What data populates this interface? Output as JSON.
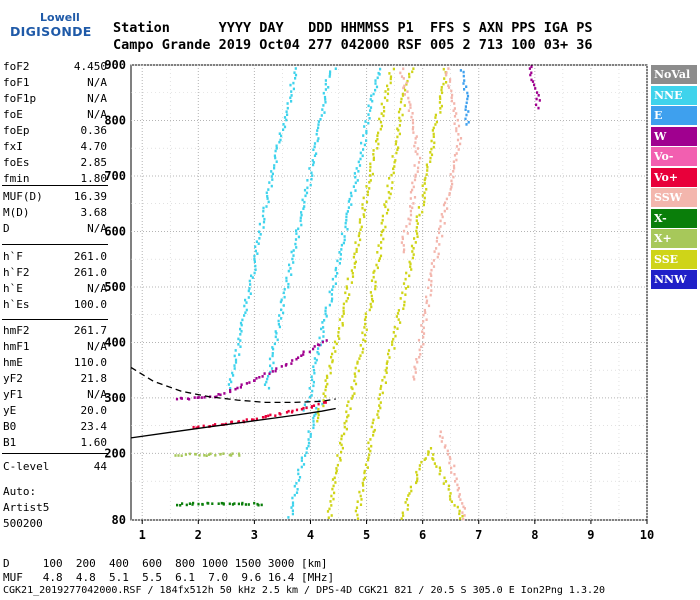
{
  "logo": {
    "line1": "Lowell",
    "line2": "DIGISONDE"
  },
  "header": {
    "row1": "Station      YYYY DAY   DDD HHMMSS P1  FFS S AXN PPS IGA PS",
    "row2": "Campo Grande 2019 Oct04 277 042000 RSF 005 2 713 100 03+ 36"
  },
  "params": [
    {
      "name": "foF2",
      "value": "4.450"
    },
    {
      "name": "foF1",
      "value": "N/A"
    },
    {
      "name": "foF1p",
      "value": "N/A"
    },
    {
      "name": "foE",
      "value": "N/A"
    },
    {
      "name": "foEp",
      "value": "0.36"
    },
    {
      "name": "fxI",
      "value": "4.70"
    },
    {
      "name": "foEs",
      "value": "2.85"
    },
    {
      "name": "fmin",
      "value": "1.80"
    },
    {
      "name": "MUF(D)",
      "value": "16.39"
    },
    {
      "name": "M(D)",
      "value": "3.68"
    },
    {
      "name": "D",
      "value": "N/A"
    },
    {
      "name": "h`F",
      "value": "261.0"
    },
    {
      "name": "h`F2",
      "value": "261.0"
    },
    {
      "name": "h`E",
      "value": "N/A"
    },
    {
      "name": "h`Es",
      "value": "100.0"
    },
    {
      "name": "hmF2",
      "value": "261.7"
    },
    {
      "name": "hmF1",
      "value": "N/A"
    },
    {
      "name": "hmE",
      "value": "110.0"
    },
    {
      "name": "yF2",
      "value": "21.8"
    },
    {
      "name": "yF1",
      "value": "N/A"
    },
    {
      "name": "yE",
      "value": "20.0"
    },
    {
      "name": "B0",
      "value": "23.4"
    },
    {
      "name": "B1",
      "value": "1.60"
    },
    {
      "name": "C-level",
      "value": "44"
    },
    {
      "name": "Auto:",
      "value": ""
    },
    {
      "name": "Artist5",
      "value": ""
    },
    {
      "name": "500200",
      "value": ""
    }
  ],
  "legend": [
    {
      "label": "NoVal",
      "bg": "#8c8c8c",
      "fg": "#ffffff"
    },
    {
      "label": "NNE",
      "bg": "#3fd3ec",
      "fg": "#ffffff"
    },
    {
      "label": "E",
      "bg": "#3ea0ee",
      "fg": "#ffffff"
    },
    {
      "label": "W",
      "bg": "#a0008f",
      "fg": "#ffffff"
    },
    {
      "label": "Vo-",
      "bg": "#f25fb0",
      "fg": "#ffffff"
    },
    {
      "label": "Vo+",
      "bg": "#e8003a",
      "fg": "#ffffff"
    },
    {
      "label": "SSW",
      "bg": "#f3b6ad",
      "fg": "#ffffff"
    },
    {
      "label": "X-",
      "bg": "#0a7e0a",
      "fg": "#ffffff"
    },
    {
      "label": "X+",
      "bg": "#a7c85a",
      "fg": "#ffffff"
    },
    {
      "label": "SSE",
      "bg": "#cfd418",
      "fg": "#ffffff"
    },
    {
      "label": "NNW",
      "bg": "#2020c8",
      "fg": "#ffffff"
    }
  ],
  "footer": {
    "row1": "D     100  200  400  600  800 1000 1500 3000 [km]",
    "row2": "MUF   4.8  4.8  5.1  5.5  6.1  7.0  9.6 16.4 [MHz]",
    "row3": "CGK21_2019277042000.RSF / 184fx512h 50 kHz 2.5 km / DPS-4D CGK21 821 / 20.5 S 305.0 E Ion2Png 1.3.20"
  },
  "chart_data": {
    "type": "scatter",
    "title": "",
    "xlabel": "",
    "ylabel": "",
    "xlim": [
      0.8,
      10
    ],
    "ylim": [
      80,
      900
    ],
    "xticks": [
      1,
      2,
      3,
      4,
      5,
      6,
      7,
      8,
      9,
      10
    ],
    "yticks": [
      80,
      200,
      300,
      400,
      500,
      600,
      700,
      800,
      900
    ],
    "grid": true,
    "legend_position": "right",
    "traces": [
      {
        "series": "NNE",
        "color": "#3fd3ec",
        "points": [
          [
            2.55,
            320
          ],
          [
            2.8,
            450
          ],
          [
            3.05,
            580
          ],
          [
            3.3,
            700
          ],
          [
            3.55,
            820
          ],
          [
            3.75,
            900
          ]
        ]
      },
      {
        "series": "NNE",
        "color": "#3fd3ec",
        "points": [
          [
            3.2,
            320
          ],
          [
            3.5,
            480
          ],
          [
            3.8,
            620
          ],
          [
            4.1,
            760
          ],
          [
            4.3,
            880
          ],
          [
            4.45,
            900
          ]
        ]
      },
      {
        "series": "NNE",
        "color": "#3fd3ec",
        "points": [
          [
            3.9,
            280
          ],
          [
            4.2,
            420
          ],
          [
            4.5,
            560
          ],
          [
            4.8,
            700
          ],
          [
            5.05,
            830
          ],
          [
            5.25,
            900
          ]
        ]
      },
      {
        "series": "NNE",
        "color": "#3fd3ec",
        "points": [
          [
            3.6,
            80
          ],
          [
            3.75,
            150
          ],
          [
            3.9,
            210
          ],
          [
            4.05,
            270
          ],
          [
            4.2,
            300
          ]
        ]
      },
      {
        "series": "SSE",
        "color": "#cfd418",
        "points": [
          [
            4.3,
            80
          ],
          [
            4.5,
            200
          ],
          [
            4.7,
            300
          ],
          [
            4.95,
            420
          ],
          [
            5.2,
            560
          ],
          [
            5.45,
            720
          ],
          [
            5.7,
            880
          ],
          [
            5.8,
            900
          ]
        ]
      },
      {
        "series": "SSE",
        "color": "#cfd418",
        "points": [
          [
            4.8,
            80
          ],
          [
            5.0,
            200
          ],
          [
            5.2,
            290
          ],
          [
            5.5,
            420
          ],
          [
            5.8,
            560
          ],
          [
            6.05,
            700
          ],
          [
            6.3,
            840
          ],
          [
            6.4,
            900
          ]
        ]
      },
      {
        "series": "SSE",
        "color": "#cfd418",
        "points": [
          [
            4.1,
            260
          ],
          [
            4.35,
            360
          ],
          [
            4.6,
            470
          ],
          [
            4.85,
            600
          ],
          [
            5.1,
            730
          ],
          [
            5.35,
            860
          ],
          [
            5.45,
            900
          ]
        ]
      },
      {
        "series": "SSE",
        "color": "#cfd418",
        "points": [
          [
            5.6,
            80
          ],
          [
            5.9,
            170
          ],
          [
            6.1,
            210
          ],
          [
            6.3,
            170
          ],
          [
            6.5,
            120
          ],
          [
            6.7,
            80
          ]
        ]
      },
      {
        "series": "SSW",
        "color": "#f3b6ad",
        "points": [
          [
            6.4,
            900
          ],
          [
            6.55,
            820
          ],
          [
            6.65,
            760
          ],
          [
            6.5,
            700
          ],
          [
            6.3,
            600
          ],
          [
            6.1,
            500
          ],
          [
            5.95,
            400
          ],
          [
            5.8,
            330
          ]
        ]
      },
      {
        "series": "SSW",
        "color": "#f3b6ad",
        "points": [
          [
            5.6,
            900
          ],
          [
            5.75,
            820
          ],
          [
            5.9,
            740
          ],
          [
            5.8,
            660
          ],
          [
            5.6,
            560
          ]
        ]
      },
      {
        "series": "SSW",
        "color": "#f3b6ad",
        "points": [
          [
            6.3,
            240
          ],
          [
            6.5,
            180
          ],
          [
            6.65,
            130
          ],
          [
            6.75,
            80
          ]
        ]
      },
      {
        "series": "E",
        "color": "#3ea0ee",
        "points": [
          [
            6.7,
            900
          ],
          [
            6.75,
            840
          ],
          [
            6.8,
            790
          ]
        ]
      },
      {
        "series": "W",
        "color": "#a0008f",
        "points": [
          [
            1.6,
            300
          ],
          [
            2.3,
            305
          ],
          [
            2.9,
            330
          ],
          [
            3.5,
            360
          ],
          [
            4.0,
            390
          ],
          [
            4.3,
            410
          ]
        ]
      },
      {
        "series": "W",
        "color": "#a0008f",
        "points": [
          [
            7.9,
            900
          ],
          [
            8.0,
            860
          ],
          [
            8.05,
            820
          ]
        ]
      },
      {
        "series": "Vo+",
        "color": "#e8003a",
        "points": [
          [
            1.9,
            248
          ],
          [
            2.6,
            258
          ],
          [
            3.2,
            268
          ],
          [
            3.8,
            282
          ],
          [
            4.3,
            296
          ]
        ]
      },
      {
        "series": "X-",
        "color": "#0a7e0a",
        "points": [
          [
            1.6,
            110
          ],
          [
            2.2,
            112
          ],
          [
            2.8,
            112
          ],
          [
            3.2,
            110
          ]
        ]
      },
      {
        "series": "X+",
        "color": "#a7c85a",
        "points": [
          [
            1.6,
            200
          ],
          [
            2.0,
            200
          ],
          [
            2.4,
            200
          ],
          [
            2.8,
            200
          ]
        ]
      }
    ],
    "profile_curves": [
      {
        "name": "dashed-profile",
        "style": "dashed",
        "points": [
          [
            0.8,
            355
          ],
          [
            1.2,
            330
          ],
          [
            1.7,
            312
          ],
          [
            2.2,
            302
          ],
          [
            2.7,
            296
          ],
          [
            3.2,
            292
          ],
          [
            3.7,
            292
          ],
          [
            4.2,
            294
          ],
          [
            4.45,
            298
          ]
        ]
      },
      {
        "name": "solid-profile",
        "style": "solid",
        "points": [
          [
            0.8,
            228
          ],
          [
            1.5,
            238
          ],
          [
            2.2,
            248
          ],
          [
            2.8,
            256
          ],
          [
            3.3,
            263
          ],
          [
            3.8,
            270
          ],
          [
            4.2,
            276
          ],
          [
            4.45,
            281
          ]
        ]
      }
    ]
  }
}
